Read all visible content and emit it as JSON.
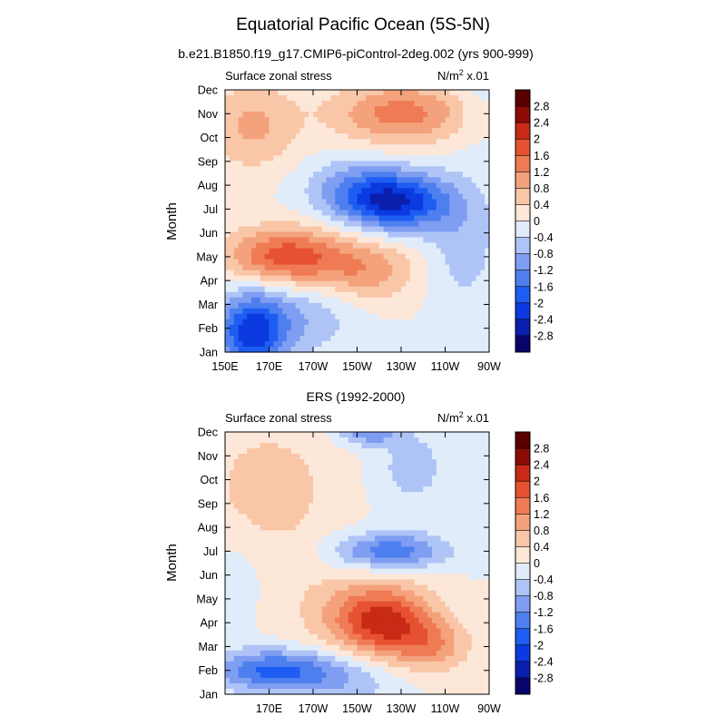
{
  "title": "Equatorial Pacific Ocean (5S-5N)",
  "colorbar": {
    "levels": [
      -2.8,
      -2.4,
      -2,
      -1.6,
      -1.2,
      -0.8,
      -0.4,
      0,
      0.4,
      0.8,
      1.2,
      1.6,
      2,
      2.4,
      2.8
    ],
    "labels": [
      "-2.8",
      "-2.4",
      "-2",
      "-1.6",
      "-1.2",
      "-0.8",
      "-0.4",
      "0",
      "0.4",
      "0.8",
      "1.2",
      "1.6",
      "2",
      "2.4",
      "2.8"
    ],
    "colors": [
      "#07056b",
      "#0a1fae",
      "#0a3ae0",
      "#1e5df2",
      "#4e7fef",
      "#7f9ef2",
      "#afc4f6",
      "#e1ecfb",
      "#fde7d8",
      "#f9c6a8",
      "#f4a27c",
      "#ef7b55",
      "#e65231",
      "#c72b15",
      "#8c0b05",
      "#5a0000"
    ]
  },
  "chart_data": [
    {
      "type": "heatmap",
      "title": "b.e21.B1850.f19_g17.CMIP6-piControl-2deg.002 (yrs 900-999)",
      "left_label": "Surface zonal stress",
      "right_label": "N/m",
      "right_sup": "2",
      "right_scale": " x.01",
      "ylabel": "Month",
      "y_ticks": [
        "Jan",
        "Feb",
        "Mar",
        "Apr",
        "May",
        "Jun",
        "Jul",
        "Aug",
        "Sep",
        "Oct",
        "Nov",
        "Dec"
      ],
      "x_ticks": [
        "150E",
        "170E",
        "170W",
        "150W",
        "130W",
        "110W",
        "90W"
      ],
      "x_tick_lon": [
        150,
        170,
        190,
        210,
        230,
        250,
        270
      ],
      "xlim_lon": [
        150,
        270
      ],
      "ylim_month": [
        1,
        12
      ],
      "features": [
        {
          "lon": 162,
          "month": 1.8,
          "amp": -2.1,
          "slon": 11,
          "smon": 1.2
        },
        {
          "lon": 185,
          "month": 2.5,
          "amp": -0.7,
          "slon": 18,
          "smon": 1.2
        },
        {
          "lon": 178,
          "month": 5,
          "amp": 1.9,
          "slon": 19,
          "smon": 0.85
        },
        {
          "lon": 215,
          "month": 4.4,
          "amp": 1.0,
          "slon": 16,
          "smon": 0.9
        },
        {
          "lon": 228,
          "month": 7.3,
          "amp": -2.3,
          "slon": 17,
          "smon": 0.85
        },
        {
          "lon": 208,
          "month": 7.9,
          "amp": -0.8,
          "slon": 16,
          "smon": 0.9
        },
        {
          "lon": 258,
          "month": 5.5,
          "amp": -0.6,
          "slon": 12,
          "smon": 2
        },
        {
          "lon": 163,
          "month": 10.5,
          "amp": 0.9,
          "slon": 14,
          "smon": 1.3
        },
        {
          "lon": 230,
          "month": 11,
          "amp": 1.4,
          "slon": 22,
          "smon": 0.9
        },
        {
          "lon": 265,
          "month": 12,
          "amp": -0.3,
          "slon": 8,
          "smon": 1.5
        }
      ]
    },
    {
      "type": "heatmap",
      "title": "ERS (1992-2000)",
      "left_label": "Surface zonal stress",
      "right_label": "N/m",
      "right_sup": "2",
      "right_scale": " x.01",
      "ylabel": "Month",
      "y_ticks": [
        "Jan",
        "Feb",
        "Mar",
        "Apr",
        "May",
        "Jun",
        "Jul",
        "Aug",
        "Sep",
        "Oct",
        "Nov",
        "Dec"
      ],
      "x_ticks": [
        "170E",
        "170W",
        "150W",
        "130W",
        "110W",
        "90W"
      ],
      "x_tick_lon": [
        170,
        190,
        210,
        230,
        250,
        270
      ],
      "xlim_lon": [
        150,
        270
      ],
      "ylim_month": [
        1,
        12
      ],
      "features": [
        {
          "lon": 172,
          "month": 2,
          "amp": -1.7,
          "slon": 20,
          "smon": 0.6
        },
        {
          "lon": 205,
          "month": 1.5,
          "amp": -0.6,
          "slon": 18,
          "smon": 0.8
        },
        {
          "lon": 222,
          "month": 4,
          "amp": 1.8,
          "slon": 15,
          "smon": 1.0
        },
        {
          "lon": 244,
          "month": 3,
          "amp": 1.0,
          "slon": 12,
          "smon": 0.8
        },
        {
          "lon": 210,
          "month": 4.5,
          "amp": 0.6,
          "slon": 22,
          "smon": 1.2
        },
        {
          "lon": 225,
          "month": 7,
          "amp": -1.5,
          "slon": 18,
          "smon": 0.55
        },
        {
          "lon": 170,
          "month": 9.5,
          "amp": 0.6,
          "slon": 22,
          "smon": 2.2
        },
        {
          "lon": 235,
          "month": 10.5,
          "amp": -0.6,
          "slon": 12,
          "smon": 1.2
        },
        {
          "lon": 215,
          "month": 12,
          "amp": -1.1,
          "slon": 10,
          "smon": 0.4
        },
        {
          "lon": 155,
          "month": 6,
          "amp": -0.3,
          "slon": 10,
          "smon": 1.5
        }
      ]
    }
  ]
}
